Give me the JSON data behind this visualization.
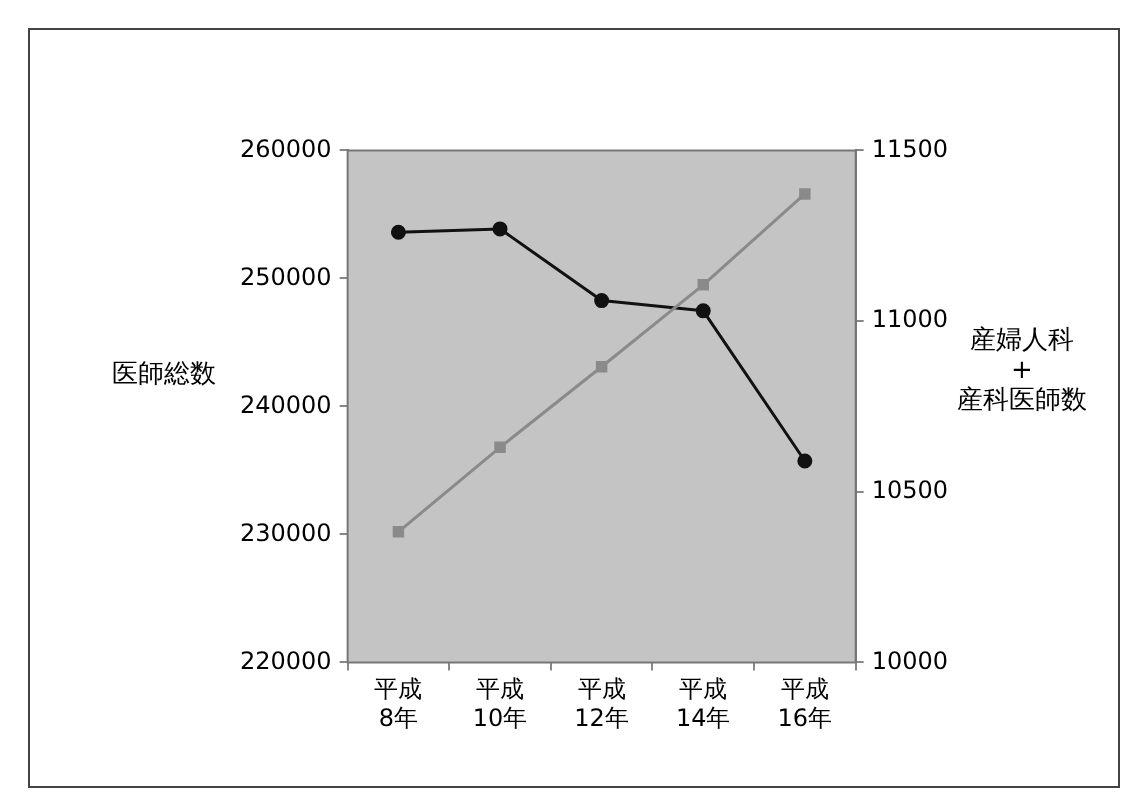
{
  "chart_data": {
    "type": "line",
    "categories": [
      "平成8年",
      "平成10年",
      "平成12年",
      "平成14年",
      "平成16年"
    ],
    "ylabel": "医師総数",
    "y2label": "産婦人科\n+\n産科医師数",
    "series": [
      {
        "color": "#8a8a8a",
        "marker": "square",
        "values": [
          230200,
          236800,
          243100,
          249500,
          256600
        ]
      },
      {
        "color": "#111111",
        "marker": "circle",
        "axis": "y2",
        "values": [
          11260,
          11270,
          11060,
          11030,
          10590
        ]
      }
    ],
    "ylim": [
      220000,
      260000
    ],
    "yticks": [
      220000,
      230000,
      240000,
      250000,
      260000
    ],
    "y2lim": [
      10000,
      11500
    ],
    "y2ticks": [
      10000,
      10500,
      11000,
      11500
    ],
    "grid": false,
    "legend": false
  }
}
